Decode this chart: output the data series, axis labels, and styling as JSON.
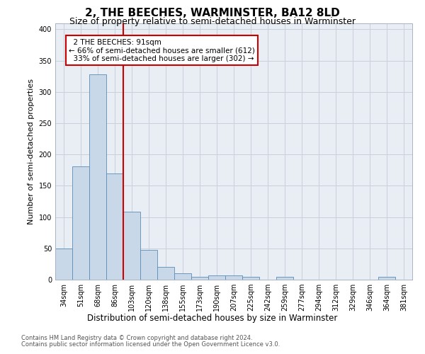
{
  "title": "2, THE BEECHES, WARMINSTER, BA12 8LD",
  "subtitle": "Size of property relative to semi-detached houses in Warminster",
  "xlabel_bottom": "Distribution of semi-detached houses by size in Warminster",
  "ylabel": "Number of semi-detached properties",
  "footer_line1": "Contains HM Land Registry data © Crown copyright and database right 2024.",
  "footer_line2": "Contains public sector information licensed under the Open Government Licence v3.0.",
  "categories": [
    "34sqm",
    "51sqm",
    "68sqm",
    "86sqm",
    "103sqm",
    "120sqm",
    "138sqm",
    "155sqm",
    "173sqm",
    "190sqm",
    "207sqm",
    "225sqm",
    "242sqm",
    "259sqm",
    "277sqm",
    "294sqm",
    "312sqm",
    "329sqm",
    "346sqm",
    "364sqm",
    "381sqm"
  ],
  "values": [
    50,
    181,
    328,
    170,
    109,
    48,
    20,
    10,
    5,
    7,
    7,
    5,
    0,
    4,
    0,
    0,
    0,
    0,
    0,
    4,
    0
  ],
  "bar_color": "#c8d8e8",
  "bar_edge_color": "#5b8db8",
  "property_label": "2 THE BEECHES: 91sqm",
  "pct_smaller": 66,
  "count_smaller": 612,
  "pct_larger": 33,
  "count_larger": 302,
  "vline_x_index": 3.5,
  "annotation_box_color": "#ffffff",
  "annotation_box_edge": "#cc0000",
  "vline_color": "#cc0000",
  "ylim": [
    0,
    410
  ],
  "yticks": [
    0,
    50,
    100,
    150,
    200,
    250,
    300,
    350,
    400
  ],
  "background_color": "#ffffff",
  "grid_color": "#c8d0dc",
  "title_fontsize": 11,
  "subtitle_fontsize": 9,
  "axis_fontsize": 8,
  "tick_fontsize": 7,
  "annot_fontsize": 7.5
}
